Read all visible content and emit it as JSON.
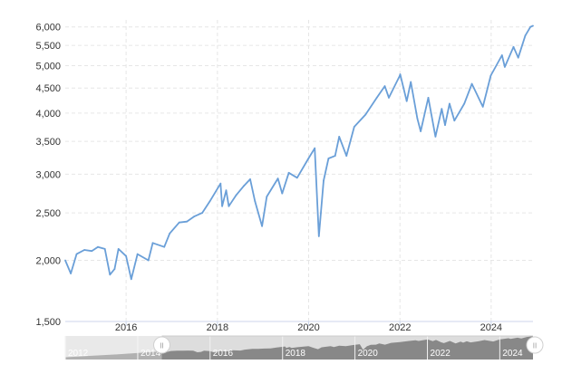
{
  "chart_data": {
    "type": "line",
    "title": "",
    "xlabel": "",
    "ylabel": "",
    "y_scale": "log",
    "xlim": [
      "2014-09-01",
      "2024-12-01"
    ],
    "ylim": [
      1500,
      6200
    ],
    "y_ticks": [
      1500,
      2000,
      2500,
      3000,
      3500,
      4000,
      4500,
      5000,
      5500,
      6000
    ],
    "y_tick_labels": [
      "1,500",
      "2,000",
      "2,500",
      "3,000",
      "3,500",
      "4,000",
      "4,500",
      "5,000",
      "5,500",
      "6,000"
    ],
    "x_ticks": [
      "2016-01-01",
      "2018-01-01",
      "2020-01-01",
      "2022-01-01",
      "2024-01-01"
    ],
    "x_tick_labels": [
      "2016",
      "2018",
      "2020",
      "2022",
      "2024"
    ],
    "grid": true,
    "legend": "none",
    "colors": {
      "line": "#6a9fd8",
      "grid": "#e6e6e6",
      "navigator_bg": "#dddddd",
      "navigator_fill": "#888888"
    },
    "series": [
      {
        "x": [
          "2014-09-01",
          "2014-10-15",
          "2014-12-01",
          "2015-02-01",
          "2015-04-01",
          "2015-05-20",
          "2015-07-15",
          "2015-08-25",
          "2015-10-01",
          "2015-11-01",
          "2016-01-01",
          "2016-02-11",
          "2016-04-01",
          "2016-06-27",
          "2016-08-01",
          "2016-11-01",
          "2016-12-15",
          "2017-03-01",
          "2017-05-01",
          "2017-07-01",
          "2017-09-01",
          "2017-11-01",
          "2018-01-26",
          "2018-02-08",
          "2018-03-12",
          "2018-04-02",
          "2018-06-01",
          "2018-08-01",
          "2018-09-20",
          "2018-10-29",
          "2018-12-24",
          "2019-01-31",
          "2019-04-30",
          "2019-06-03",
          "2019-07-26",
          "2019-10-01",
          "2019-12-31",
          "2020-02-19",
          "2020-03-23",
          "2020-04-30",
          "2020-06-08",
          "2020-07-31",
          "2020-09-02",
          "2020-10-30",
          "2020-12-31",
          "2021-03-31",
          "2021-06-30",
          "2021-09-02",
          "2021-10-04",
          "2021-12-31",
          "2022-01-03",
          "2022-02-24",
          "2022-03-29",
          "2022-05-20",
          "2022-06-16",
          "2022-08-16",
          "2022-10-12",
          "2022-12-01",
          "2022-12-28",
          "2023-02-02",
          "2023-03-13",
          "2023-05-31",
          "2023-07-31",
          "2023-10-27",
          "2023-12-29",
          "2024-03-28",
          "2024-04-19",
          "2024-06-28",
          "2024-08-05",
          "2024-09-30",
          "2024-11-11",
          "2024-12-01"
        ],
        "values": [
          2000,
          1880,
          2060,
          2100,
          2090,
          2130,
          2110,
          1870,
          1920,
          2110,
          2040,
          1830,
          2060,
          2000,
          2170,
          2130,
          2270,
          2390,
          2400,
          2460,
          2500,
          2640,
          2870,
          2580,
          2780,
          2580,
          2720,
          2840,
          2930,
          2640,
          2350,
          2700,
          2940,
          2740,
          3020,
          2950,
          3230,
          3390,
          2240,
          2910,
          3230,
          3270,
          3580,
          3270,
          3750,
          3970,
          4300,
          4540,
          4300,
          4770,
          4800,
          4230,
          4630,
          3900,
          3670,
          4300,
          3580,
          4080,
          3780,
          4180,
          3860,
          4180,
          4590,
          4120,
          4770,
          5250,
          4970,
          5460,
          5190,
          5760,
          6000,
          6030
        ]
      }
    ],
    "navigator": {
      "labels": [
        "2012",
        "2014",
        "2016",
        "2018",
        "2020",
        "2022",
        "2024"
      ],
      "handle_symbol": "II"
    }
  }
}
